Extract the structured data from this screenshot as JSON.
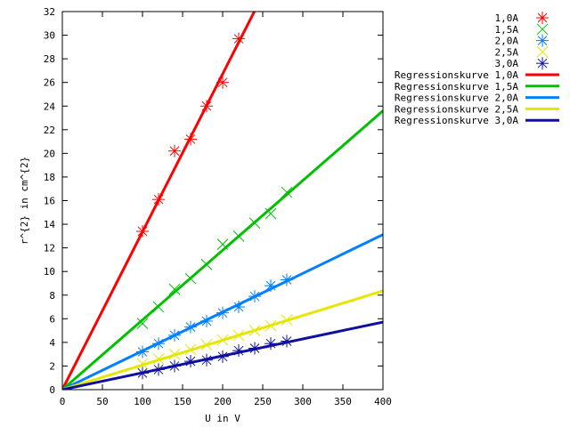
{
  "chart_data": {
    "type": "scatter",
    "title": "",
    "xlabel": "U in V",
    "ylabel": "r^{2} in cm^{2}",
    "xlim": [
      0,
      400
    ],
    "ylim": [
      0,
      32
    ],
    "x_ticks": [
      0,
      50,
      100,
      150,
      200,
      250,
      300,
      350,
      400
    ],
    "y_ticks": [
      0,
      2,
      4,
      6,
      8,
      10,
      12,
      14,
      16,
      18,
      20,
      22,
      24,
      26,
      28,
      30,
      32
    ],
    "grid": false,
    "legend_position": "top-right, outside plot",
    "series": [
      {
        "name": "1,0A",
        "kind": "points",
        "marker": "star",
        "color": "#ff0000",
        "points": [
          [
            100,
            13.4
          ],
          [
            120,
            16.1
          ],
          [
            140,
            20.2
          ],
          [
            160,
            21.2
          ],
          [
            180,
            24.0
          ],
          [
            200,
            26.0
          ],
          [
            220,
            29.7
          ]
        ]
      },
      {
        "name": "1,5A",
        "kind": "points",
        "marker": "cross",
        "color": "#00c000",
        "points": [
          [
            100,
            5.6
          ],
          [
            120,
            7.0
          ],
          [
            140,
            8.5
          ],
          [
            160,
            9.4
          ],
          [
            180,
            10.6
          ],
          [
            200,
            12.3
          ],
          [
            220,
            13.0
          ],
          [
            240,
            14.1
          ],
          [
            260,
            14.9
          ],
          [
            280,
            16.7
          ]
        ]
      },
      {
        "name": "2,0A",
        "kind": "points",
        "marker": "star",
        "color": "#0080ff",
        "points": [
          [
            100,
            3.2
          ],
          [
            120,
            3.9
          ],
          [
            140,
            4.6
          ],
          [
            160,
            5.3
          ],
          [
            180,
            5.8
          ],
          [
            200,
            6.5
          ],
          [
            220,
            7.0
          ],
          [
            240,
            7.9
          ],
          [
            260,
            8.8
          ],
          [
            280,
            9.3
          ]
        ]
      },
      {
        "name": "2,5A",
        "kind": "points",
        "marker": "cross",
        "color": "#e6e600",
        "points": [
          [
            100,
            2.2
          ],
          [
            120,
            2.6
          ],
          [
            140,
            3.0
          ],
          [
            160,
            3.4
          ],
          [
            180,
            3.8
          ],
          [
            200,
            4.2
          ],
          [
            220,
            4.6
          ],
          [
            240,
            5.0
          ],
          [
            260,
            5.4
          ],
          [
            280,
            5.9
          ]
        ]
      },
      {
        "name": "3,0A",
        "kind": "points",
        "marker": "star",
        "color": "#1010a0",
        "points": [
          [
            100,
            1.4
          ],
          [
            120,
            1.7
          ],
          [
            140,
            2.0
          ],
          [
            160,
            2.4
          ],
          [
            180,
            2.5
          ],
          [
            200,
            2.8
          ],
          [
            220,
            3.3
          ],
          [
            240,
            3.5
          ],
          [
            260,
            3.9
          ],
          [
            280,
            4.1
          ]
        ]
      },
      {
        "name": "Regressionskurve 1,0A",
        "kind": "line",
        "color": "#ff0000",
        "slope": 0.1336
      },
      {
        "name": "Regressionskurve 1,5A",
        "kind": "line",
        "color": "#00c000",
        "slope": 0.059
      },
      {
        "name": "Regressionskurve 2,0A",
        "kind": "line",
        "color": "#0080ff",
        "slope": 0.0328
      },
      {
        "name": "Regressionskurve 2,5A",
        "kind": "line",
        "color": "#e6e600",
        "slope": 0.0209
      },
      {
        "name": "Regressionskurve 3,0A",
        "kind": "line",
        "color": "#1010a0",
        "slope": 0.0143
      }
    ]
  }
}
